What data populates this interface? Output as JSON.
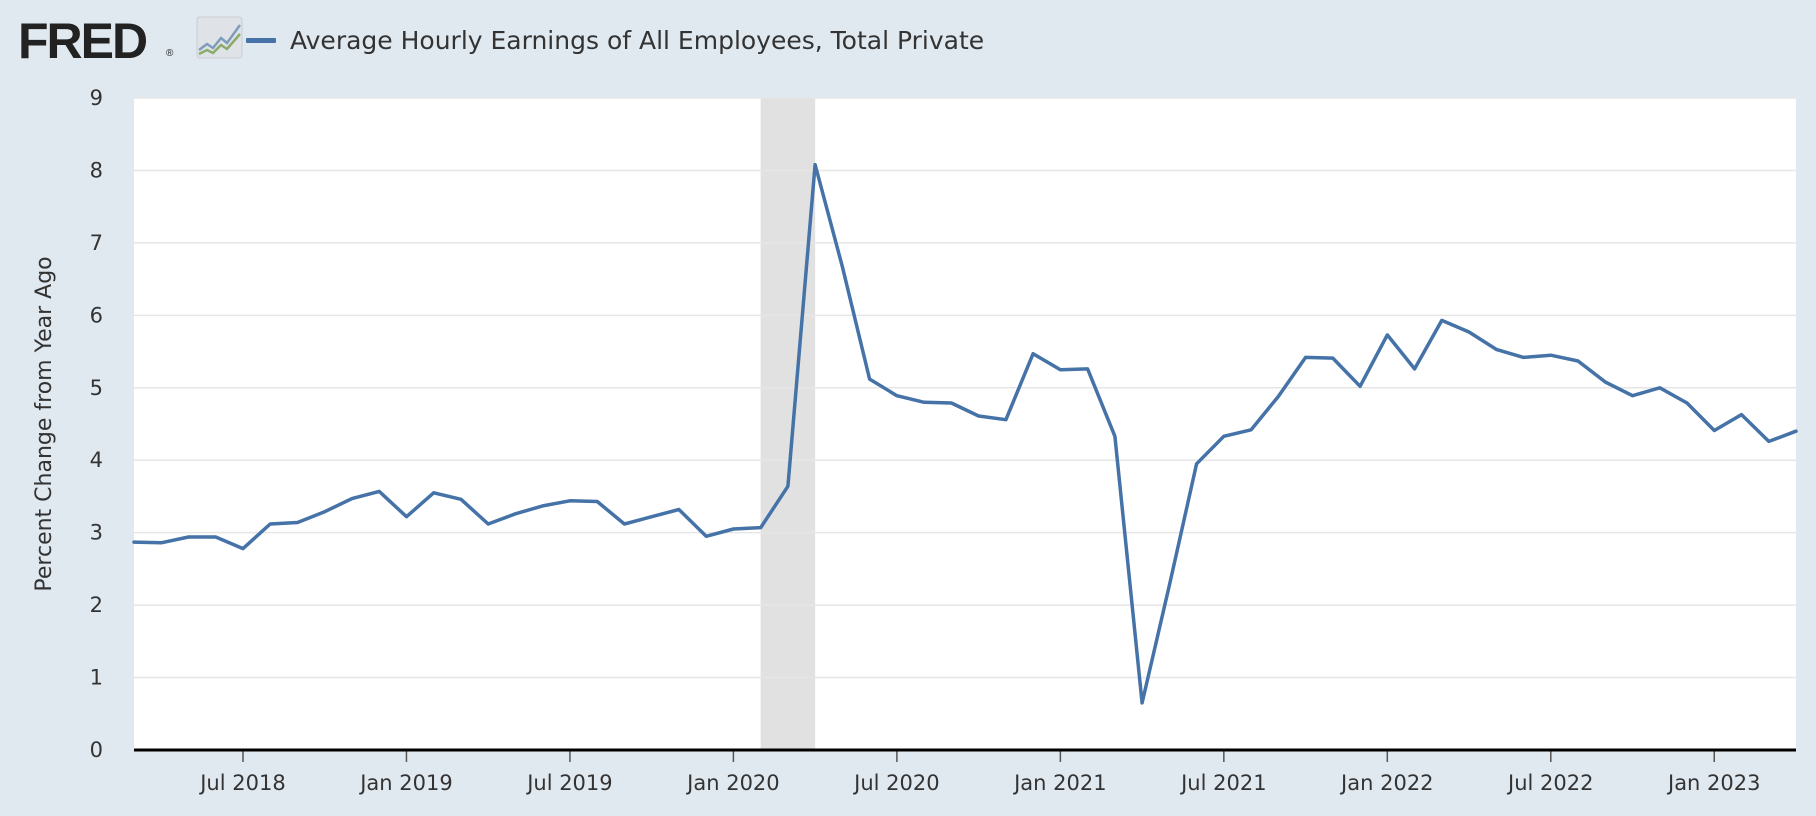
{
  "header": {
    "logo_text": "FRED",
    "logo_mark": "®",
    "logo_icon": "line-graph-icon",
    "legend_label": "Average Hourly Earnings of All Employees, Total Private"
  },
  "colors": {
    "background": "#e1e9f0",
    "plot_background": "#ffffff",
    "series": "#4572a7",
    "recession_band": "#e1e1e1",
    "gridline": "#e6e6e6",
    "axis": "#000000"
  },
  "chart_data": {
    "type": "line",
    "title": "",
    "xlabel": "",
    "ylabel": "Percent Change from Year Ago",
    "ylim": [
      0,
      9
    ],
    "yticks": [
      0,
      1,
      2,
      3,
      4,
      5,
      6,
      7,
      8,
      9
    ],
    "xlim": [
      "2018-03",
      "2023-04"
    ],
    "xticks": [
      {
        "date": "2018-07",
        "label": "Jul 2018"
      },
      {
        "date": "2019-01",
        "label": "Jan 2019"
      },
      {
        "date": "2019-07",
        "label": "Jul 2019"
      },
      {
        "date": "2020-01",
        "label": "Jan 2020"
      },
      {
        "date": "2020-07",
        "label": "Jul 2020"
      },
      {
        "date": "2021-01",
        "label": "Jan 2021"
      },
      {
        "date": "2021-07",
        "label": "Jul 2021"
      },
      {
        "date": "2022-01",
        "label": "Jan 2022"
      },
      {
        "date": "2022-07",
        "label": "Jul 2022"
      },
      {
        "date": "2023-01",
        "label": "Jan 2023"
      }
    ],
    "grid": true,
    "legend_position": "top-left",
    "recession_shading": [
      {
        "start": "2020-02",
        "end": "2020-04"
      }
    ],
    "series": [
      {
        "name": "Average Hourly Earnings of All Employees, Total Private",
        "x": [
          "2018-03",
          "2018-04",
          "2018-05",
          "2018-06",
          "2018-07",
          "2018-08",
          "2018-09",
          "2018-10",
          "2018-11",
          "2018-12",
          "2019-01",
          "2019-02",
          "2019-03",
          "2019-04",
          "2019-05",
          "2019-06",
          "2019-07",
          "2019-08",
          "2019-09",
          "2019-10",
          "2019-11",
          "2019-12",
          "2020-01",
          "2020-02",
          "2020-03",
          "2020-04",
          "2020-05",
          "2020-06",
          "2020-07",
          "2020-08",
          "2020-09",
          "2020-10",
          "2020-11",
          "2020-12",
          "2021-01",
          "2021-02",
          "2021-03",
          "2021-04",
          "2021-05",
          "2021-06",
          "2021-07",
          "2021-08",
          "2021-09",
          "2021-10",
          "2021-11",
          "2021-12",
          "2022-01",
          "2022-02",
          "2022-03",
          "2022-04",
          "2022-05",
          "2022-06",
          "2022-07",
          "2022-08",
          "2022-09",
          "2022-10",
          "2022-11",
          "2022-12",
          "2023-01",
          "2023-02",
          "2023-03",
          "2023-04"
        ],
        "y": [
          2.87,
          2.86,
          2.94,
          2.94,
          2.78,
          3.12,
          3.14,
          3.29,
          3.47,
          3.57,
          3.22,
          3.55,
          3.46,
          3.12,
          3.26,
          3.37,
          3.44,
          3.43,
          3.12,
          3.22,
          3.32,
          2.95,
          3.05,
          3.07,
          3.64,
          8.08,
          6.67,
          5.12,
          4.89,
          4.8,
          4.79,
          4.61,
          4.56,
          5.47,
          5.25,
          5.26,
          4.33,
          0.65,
          2.27,
          3.95,
          4.33,
          4.42,
          4.88,
          5.42,
          5.41,
          5.02,
          5.73,
          5.26,
          5.93,
          5.77,
          5.53,
          5.42,
          5.45,
          5.37,
          5.08,
          4.89,
          5.0,
          4.79,
          4.41,
          4.63,
          4.26,
          4.4
        ]
      }
    ]
  }
}
